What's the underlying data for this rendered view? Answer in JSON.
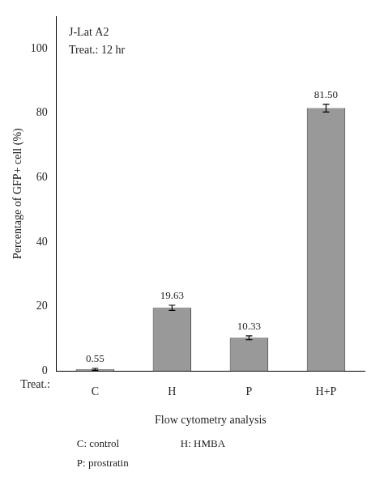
{
  "chart_data": {
    "type": "bar",
    "categories": [
      "C",
      "H",
      "P",
      "H+P"
    ],
    "values": [
      0.55,
      19.63,
      10.33,
      81.5
    ],
    "errors": [
      0.3,
      0.8,
      0.6,
      1.2
    ],
    "value_labels": [
      "0.55",
      "19.63",
      "10.33",
      "81.50"
    ],
    "data_labels": true,
    "color": "#999999",
    "ylim": [
      0,
      110
    ],
    "yticks": [
      0,
      20,
      40,
      60,
      80,
      100
    ],
    "ylabel": "Percentage of GFP+ cell (%)",
    "xlabel": "Flow cytometry analysis",
    "annotations": [
      "J-Lat A2",
      "Treat.: 12 hr",
      "Treat.:",
      "C: control",
      "H: HMBA",
      "P: prostratin"
    ],
    "grid": false
  }
}
